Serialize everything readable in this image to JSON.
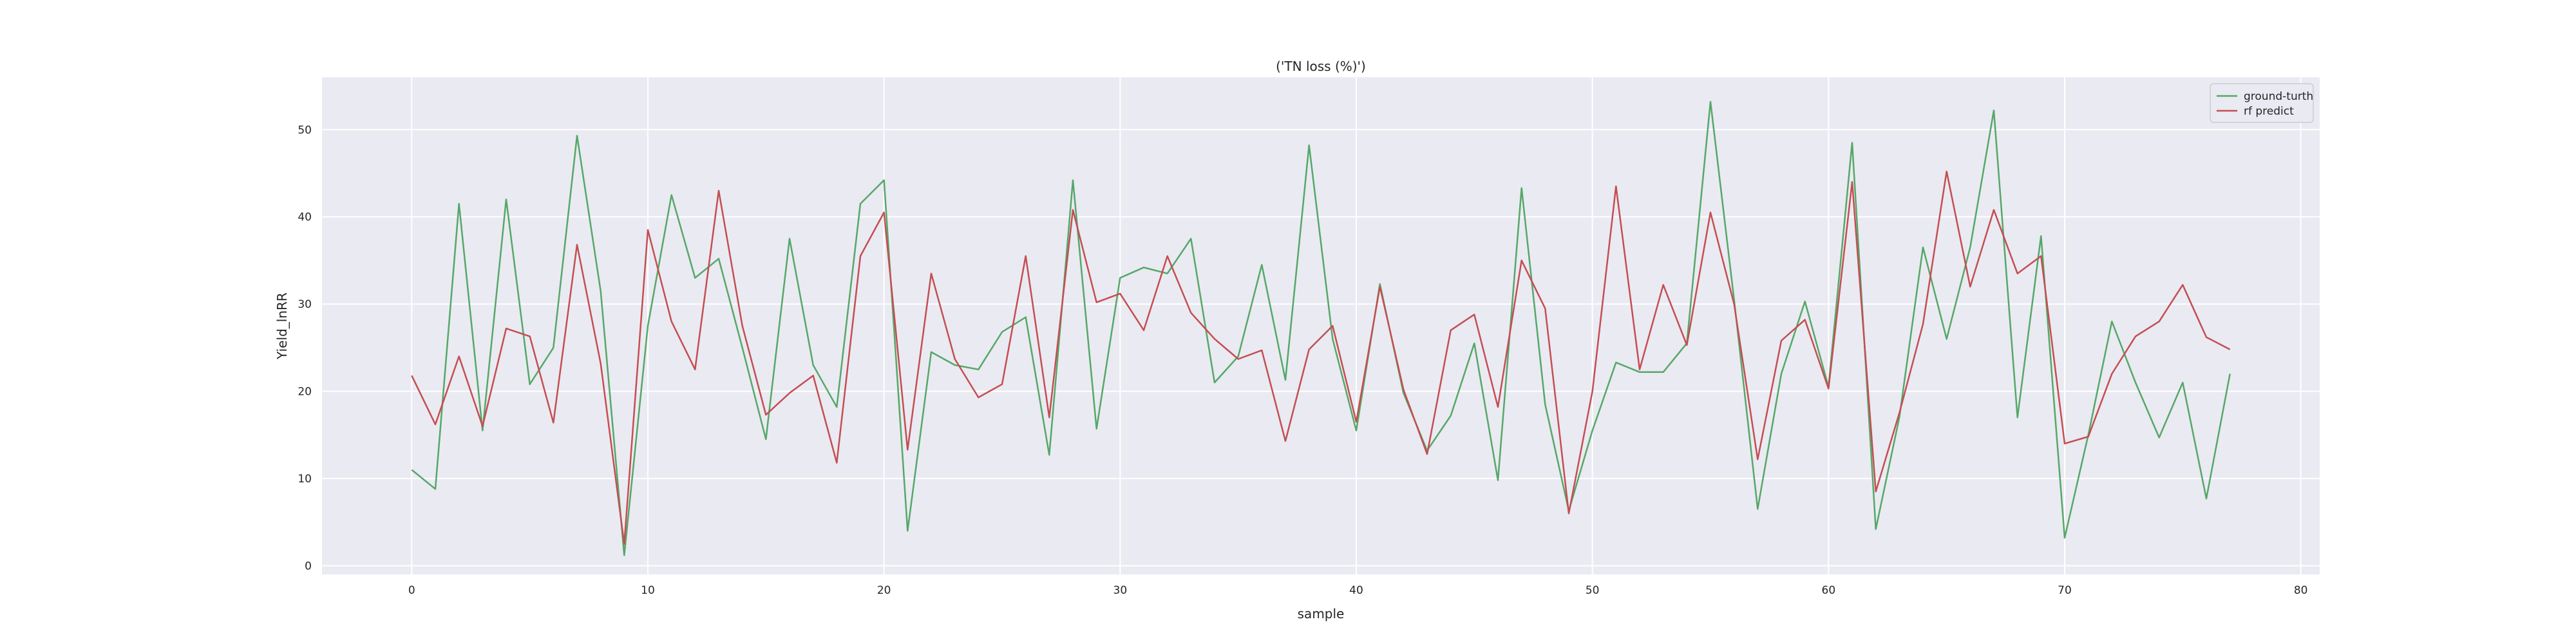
{
  "chart_data": {
    "type": "line",
    "title": "('TN loss (%)')",
    "xlabel": "sample",
    "ylabel": "Yield_lnRR",
    "xlim": [
      -3.8,
      80.8
    ],
    "ylim": [
      -1.0,
      56.0
    ],
    "xticks": [
      0,
      10,
      20,
      30,
      40,
      50,
      60,
      70,
      80
    ],
    "yticks": [
      0,
      10,
      20,
      30,
      40,
      50
    ],
    "grid": true,
    "legend_position": "top-right",
    "colors": {
      "plot_bg": "#eaeaf2",
      "grid": "#ffffff"
    },
    "x": [
      0,
      1,
      2,
      3,
      4,
      5,
      6,
      7,
      8,
      9,
      10,
      11,
      12,
      13,
      14,
      15,
      16,
      17,
      18,
      19,
      20,
      21,
      22,
      23,
      24,
      25,
      26,
      27,
      28,
      29,
      30,
      31,
      32,
      33,
      34,
      35,
      36,
      37,
      38,
      39,
      40,
      41,
      42,
      43,
      44,
      45,
      46,
      47,
      48,
      49,
      50,
      51,
      52,
      53,
      54,
      55,
      56,
      57,
      58,
      59,
      60,
      61,
      62,
      63,
      64,
      65,
      66,
      67,
      68,
      69,
      70,
      71,
      72,
      73,
      74,
      75,
      76,
      77
    ],
    "series": [
      {
        "name": "ground-turth",
        "color": "#55a868",
        "values": [
          11.0,
          8.8,
          41.5,
          15.5,
          42.0,
          20.8,
          25.0,
          49.3,
          31.5,
          1.2,
          27.5,
          42.5,
          33.0,
          35.2,
          25.0,
          14.5,
          37.5,
          23.0,
          18.2,
          41.5,
          44.2,
          4.0,
          24.5,
          23.0,
          22.5,
          26.8,
          28.5,
          12.7,
          44.2,
          15.7,
          33.0,
          34.2,
          33.5,
          37.5,
          21.0,
          24.0,
          34.5,
          21.3,
          48.2,
          26.0,
          15.5,
          32.3,
          19.8,
          13.2,
          17.2,
          25.5,
          9.8,
          43.3,
          18.5,
          6.3,
          15.5,
          23.3,
          22.2,
          22.2,
          25.5,
          53.2,
          30.5,
          6.5,
          22.0,
          30.3,
          20.5,
          48.5,
          4.2,
          17.0,
          36.5,
          26.0,
          36.5,
          52.2,
          17.0,
          37.8,
          3.2,
          15.0,
          28.0,
          21.0,
          14.7,
          21.0,
          7.7,
          22.0
        ]
      },
      {
        "name": "rf predict",
        "color": "#c44e52",
        "values": [
          21.8,
          16.2,
          24.0,
          16.0,
          27.2,
          26.3,
          16.4,
          36.8,
          23.2,
          2.5,
          38.5,
          28.0,
          22.5,
          43.0,
          27.5,
          17.3,
          19.8,
          21.8,
          11.8,
          35.5,
          40.5,
          13.3,
          33.5,
          23.7,
          19.3,
          20.8,
          35.5,
          17.0,
          40.8,
          30.2,
          31.2,
          27.0,
          35.5,
          29.0,
          26.0,
          23.7,
          24.7,
          14.3,
          24.8,
          27.5,
          16.5,
          32.0,
          20.2,
          12.8,
          27.0,
          28.8,
          18.2,
          35.0,
          29.5,
          6.0,
          20.0,
          43.5,
          22.5,
          32.2,
          25.3,
          40.5,
          30.0,
          12.2,
          25.8,
          28.2,
          20.3,
          44.0,
          8.5,
          17.5,
          27.7,
          45.2,
          32.0,
          40.8,
          33.5,
          35.5,
          14.0,
          14.8,
          22.0,
          26.3,
          28.0,
          32.2,
          26.2,
          24.8
        ]
      }
    ]
  }
}
